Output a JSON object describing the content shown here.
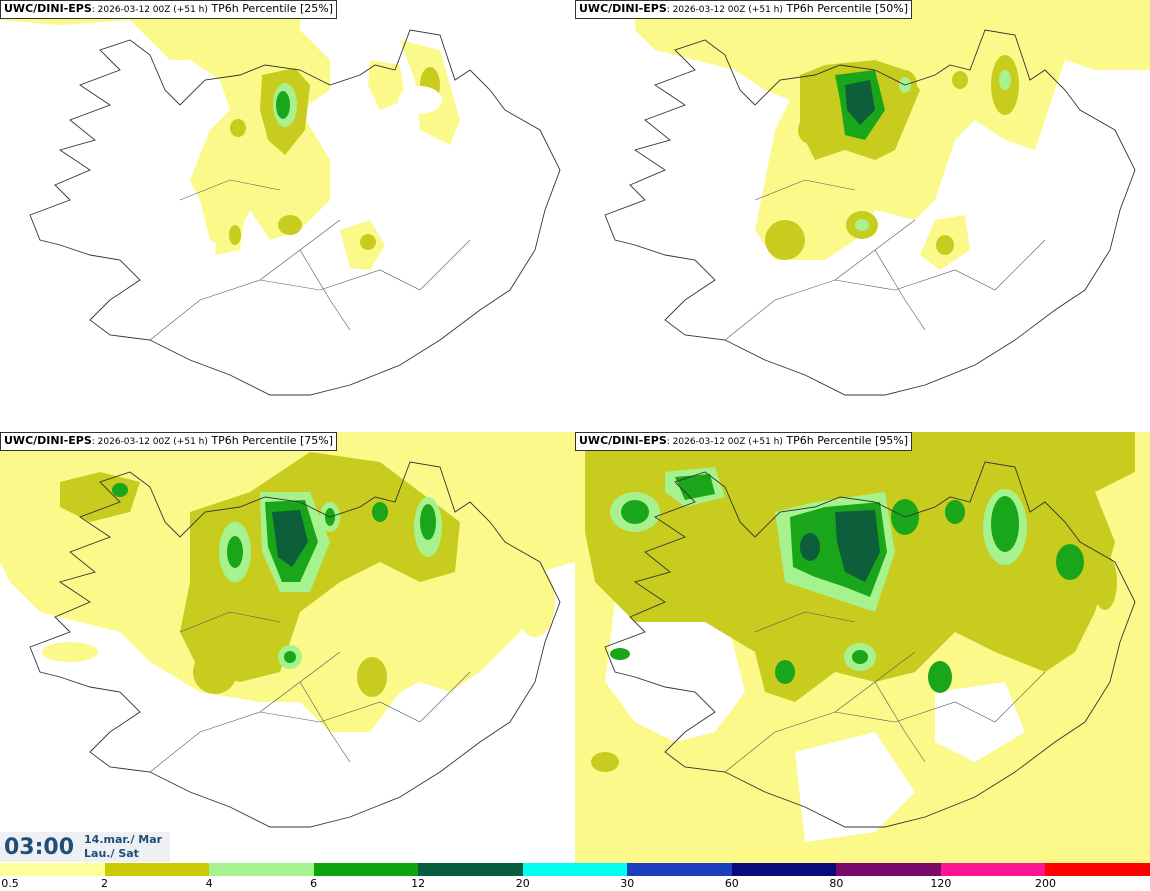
{
  "panels": [
    {
      "model": "UWC/DINI-EPS",
      "run": ": 2026-03-12 00Z (+51 h)",
      "product": " TP6h Percentile [25%]"
    },
    {
      "model": "UWC/DINI-EPS",
      "run": ": 2026-03-12 00Z (+51 h)",
      "product": " TP6h Percentile [50%]"
    },
    {
      "model": "UWC/DINI-EPS",
      "run": ": 2026-03-12 00Z (+51 h)",
      "product": " TP6h Percentile [75%]"
    },
    {
      "model": "UWC/DINI-EPS",
      "run": ": 2026-03-12 00Z (+51 h)",
      "product": " TP6h Percentile [95%]"
    }
  ],
  "valid_time": {
    "time": "03:00",
    "date_line1": "14.mar./ Mar",
    "date_line2": "Lau./ Sat"
  },
  "colorbar": {
    "ticks": [
      "0.5",
      "2",
      "4",
      "6",
      "12",
      "20",
      "30",
      "60",
      "80",
      "120",
      "200"
    ],
    "colors": [
      "#ffff99",
      "#c8cc00",
      "#a6f28f",
      "#0ca60c",
      "#0a5c3e",
      "#00ffef",
      "#1c3fbf",
      "#0a0a7a",
      "#7a0a6a",
      "#ff1493",
      "#ff0000"
    ]
  },
  "field_colors": {
    "light": "#fbf98a",
    "olive": "#c8cc1e",
    "lightgreen": "#a6f28f",
    "green": "#1aa61a",
    "darkgreen": "#0d5e3a",
    "coast": "#333333"
  }
}
